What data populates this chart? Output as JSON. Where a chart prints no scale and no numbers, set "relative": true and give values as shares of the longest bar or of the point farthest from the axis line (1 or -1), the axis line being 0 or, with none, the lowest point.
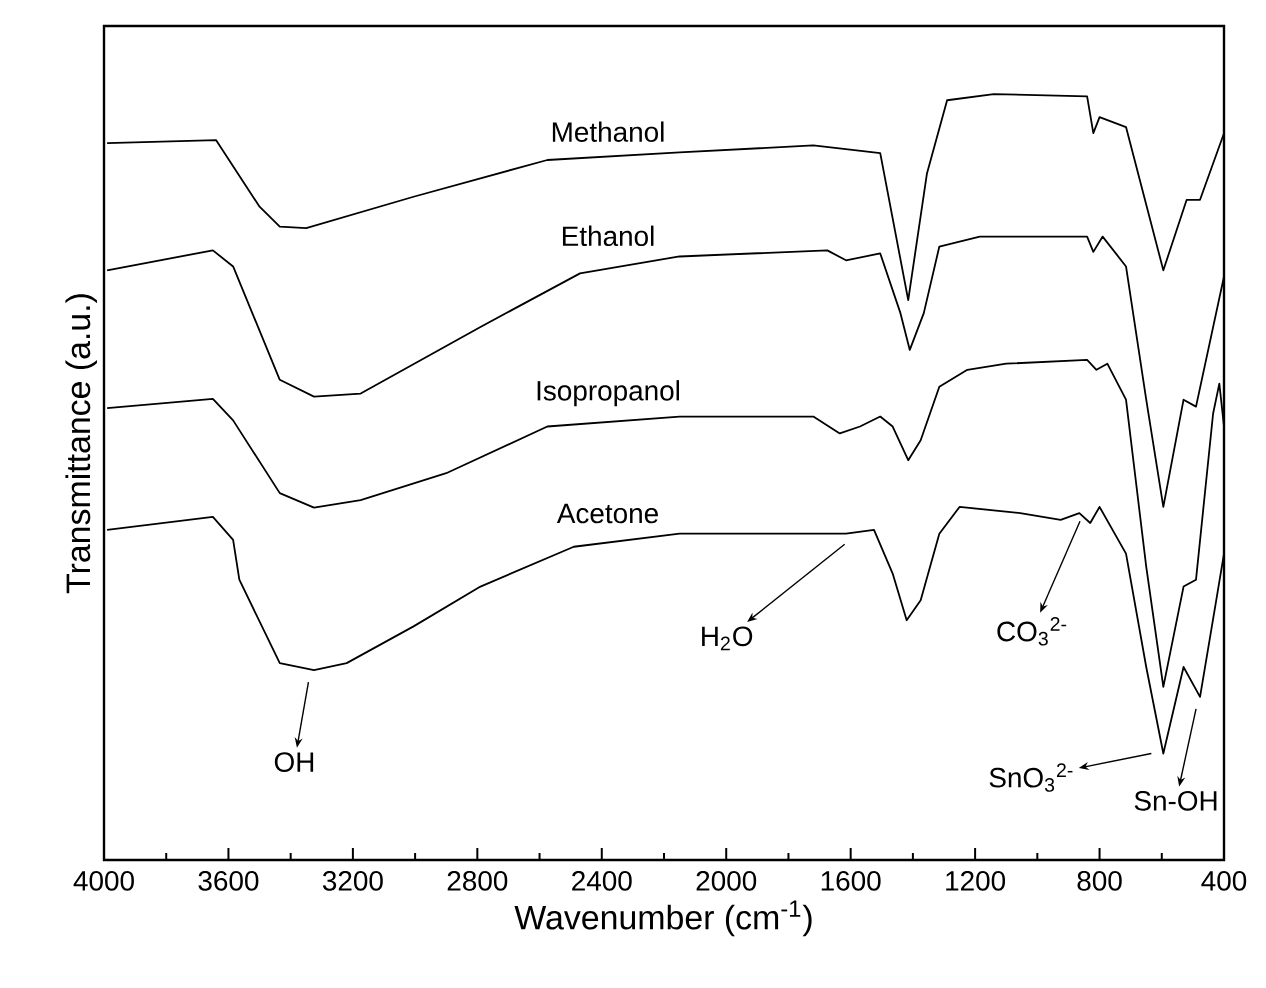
{
  "chart_data": {
    "type": "line",
    "relative": true,
    "xlabel": "Wavenumber (cm$^{-1}$)",
    "ylabel": "Transmittance (a.u.)",
    "xlim": [
      4000,
      400
    ],
    "xticks": [
      4000,
      3600,
      3200,
      2800,
      2400,
      2000,
      1600,
      1200,
      800,
      400
    ],
    "grid": false,
    "legend": false,
    "marker": "none",
    "line_style": "solid",
    "series": [
      {
        "name": "Methanol",
        "color": "#000000",
        "x": [
          3990,
          3640,
          3500,
          3435,
          3350,
          3005,
          2575,
          2150,
          1720,
          1505,
          1415,
          1355,
          1290,
          1140,
          840,
          820,
          800,
          715,
          595,
          520,
          477,
          400
        ],
        "values": [
          0.936,
          0.94,
          0.853,
          0.827,
          0.825,
          0.866,
          0.914,
          0.924,
          0.933,
          0.923,
          0.731,
          0.896,
          0.992,
          1.0,
          0.997,
          0.949,
          0.97,
          0.957,
          0.77,
          0.862,
          0.862,
          0.949
        ]
      },
      {
        "name": "Ethanol",
        "color": "#000000",
        "x": [
          3990,
          3650,
          3585,
          3435,
          3325,
          3175,
          2790,
          2470,
          2150,
          1675,
          1615,
          1505,
          1440,
          1410,
          1365,
          1315,
          1185,
          840,
          820,
          790,
          715,
          650,
          595,
          530,
          490,
          400
        ],
        "values": [
          0.77,
          0.796,
          0.775,
          0.627,
          0.605,
          0.609,
          0.696,
          0.766,
          0.788,
          0.796,
          0.783,
          0.792,
          0.714,
          0.666,
          0.714,
          0.801,
          0.814,
          0.814,
          0.794,
          0.814,
          0.775,
          0.601,
          0.461,
          0.601,
          0.592,
          0.762
        ]
      },
      {
        "name": "Isopropanol",
        "color": "#000000",
        "x": [
          3990,
          3650,
          3585,
          3435,
          3325,
          3175,
          2900,
          2575,
          2150,
          1720,
          1635,
          1570,
          1505,
          1465,
          1415,
          1375,
          1315,
          1225,
          1100,
          840,
          810,
          775,
          715,
          650,
          595,
          530,
          490,
          435,
          415,
          400
        ],
        "values": [
          0.59,
          0.602,
          0.574,
          0.479,
          0.46,
          0.47,
          0.505,
          0.566,
          0.579,
          0.579,
          0.557,
          0.566,
          0.579,
          0.566,
          0.522,
          0.548,
          0.618,
          0.64,
          0.648,
          0.653,
          0.64,
          0.648,
          0.601,
          0.383,
          0.226,
          0.357,
          0.366,
          0.583,
          0.622,
          0.566
        ]
      },
      {
        "name": "Acetone",
        "color": "#000000",
        "x": [
          3990,
          3650,
          3585,
          3565,
          3435,
          3325,
          3220,
          3005,
          2790,
          2490,
          2150,
          1615,
          1525,
          1465,
          1420,
          1375,
          1315,
          1250,
          1055,
          925,
          865,
          830,
          800,
          715,
          650,
          595,
          530,
          477,
          425,
          400
        ],
        "values": [
          0.431,
          0.448,
          0.418,
          0.366,
          0.257,
          0.248,
          0.257,
          0.305,
          0.357,
          0.409,
          0.426,
          0.426,
          0.431,
          0.374,
          0.313,
          0.339,
          0.426,
          0.461,
          0.453,
          0.444,
          0.453,
          0.44,
          0.461,
          0.4,
          0.252,
          0.139,
          0.252,
          0.213,
          0.339,
          0.4
        ]
      }
    ],
    "annotations": [
      {
        "text": "OH",
        "x": 3330,
        "y": 0.248
      },
      {
        "text": "H$_{2}$O",
        "x": 1600,
        "y": 0.42
      },
      {
        "text": "CO$_{3}$$^{2-}$",
        "x": 850,
        "y": 0.45
      },
      {
        "text": "SnO$_{3}$$^{2-}$",
        "x": 595,
        "y": 0.139
      },
      {
        "text": "Sn-OH",
        "x": 477,
        "y": 0.213
      }
    ]
  }
}
